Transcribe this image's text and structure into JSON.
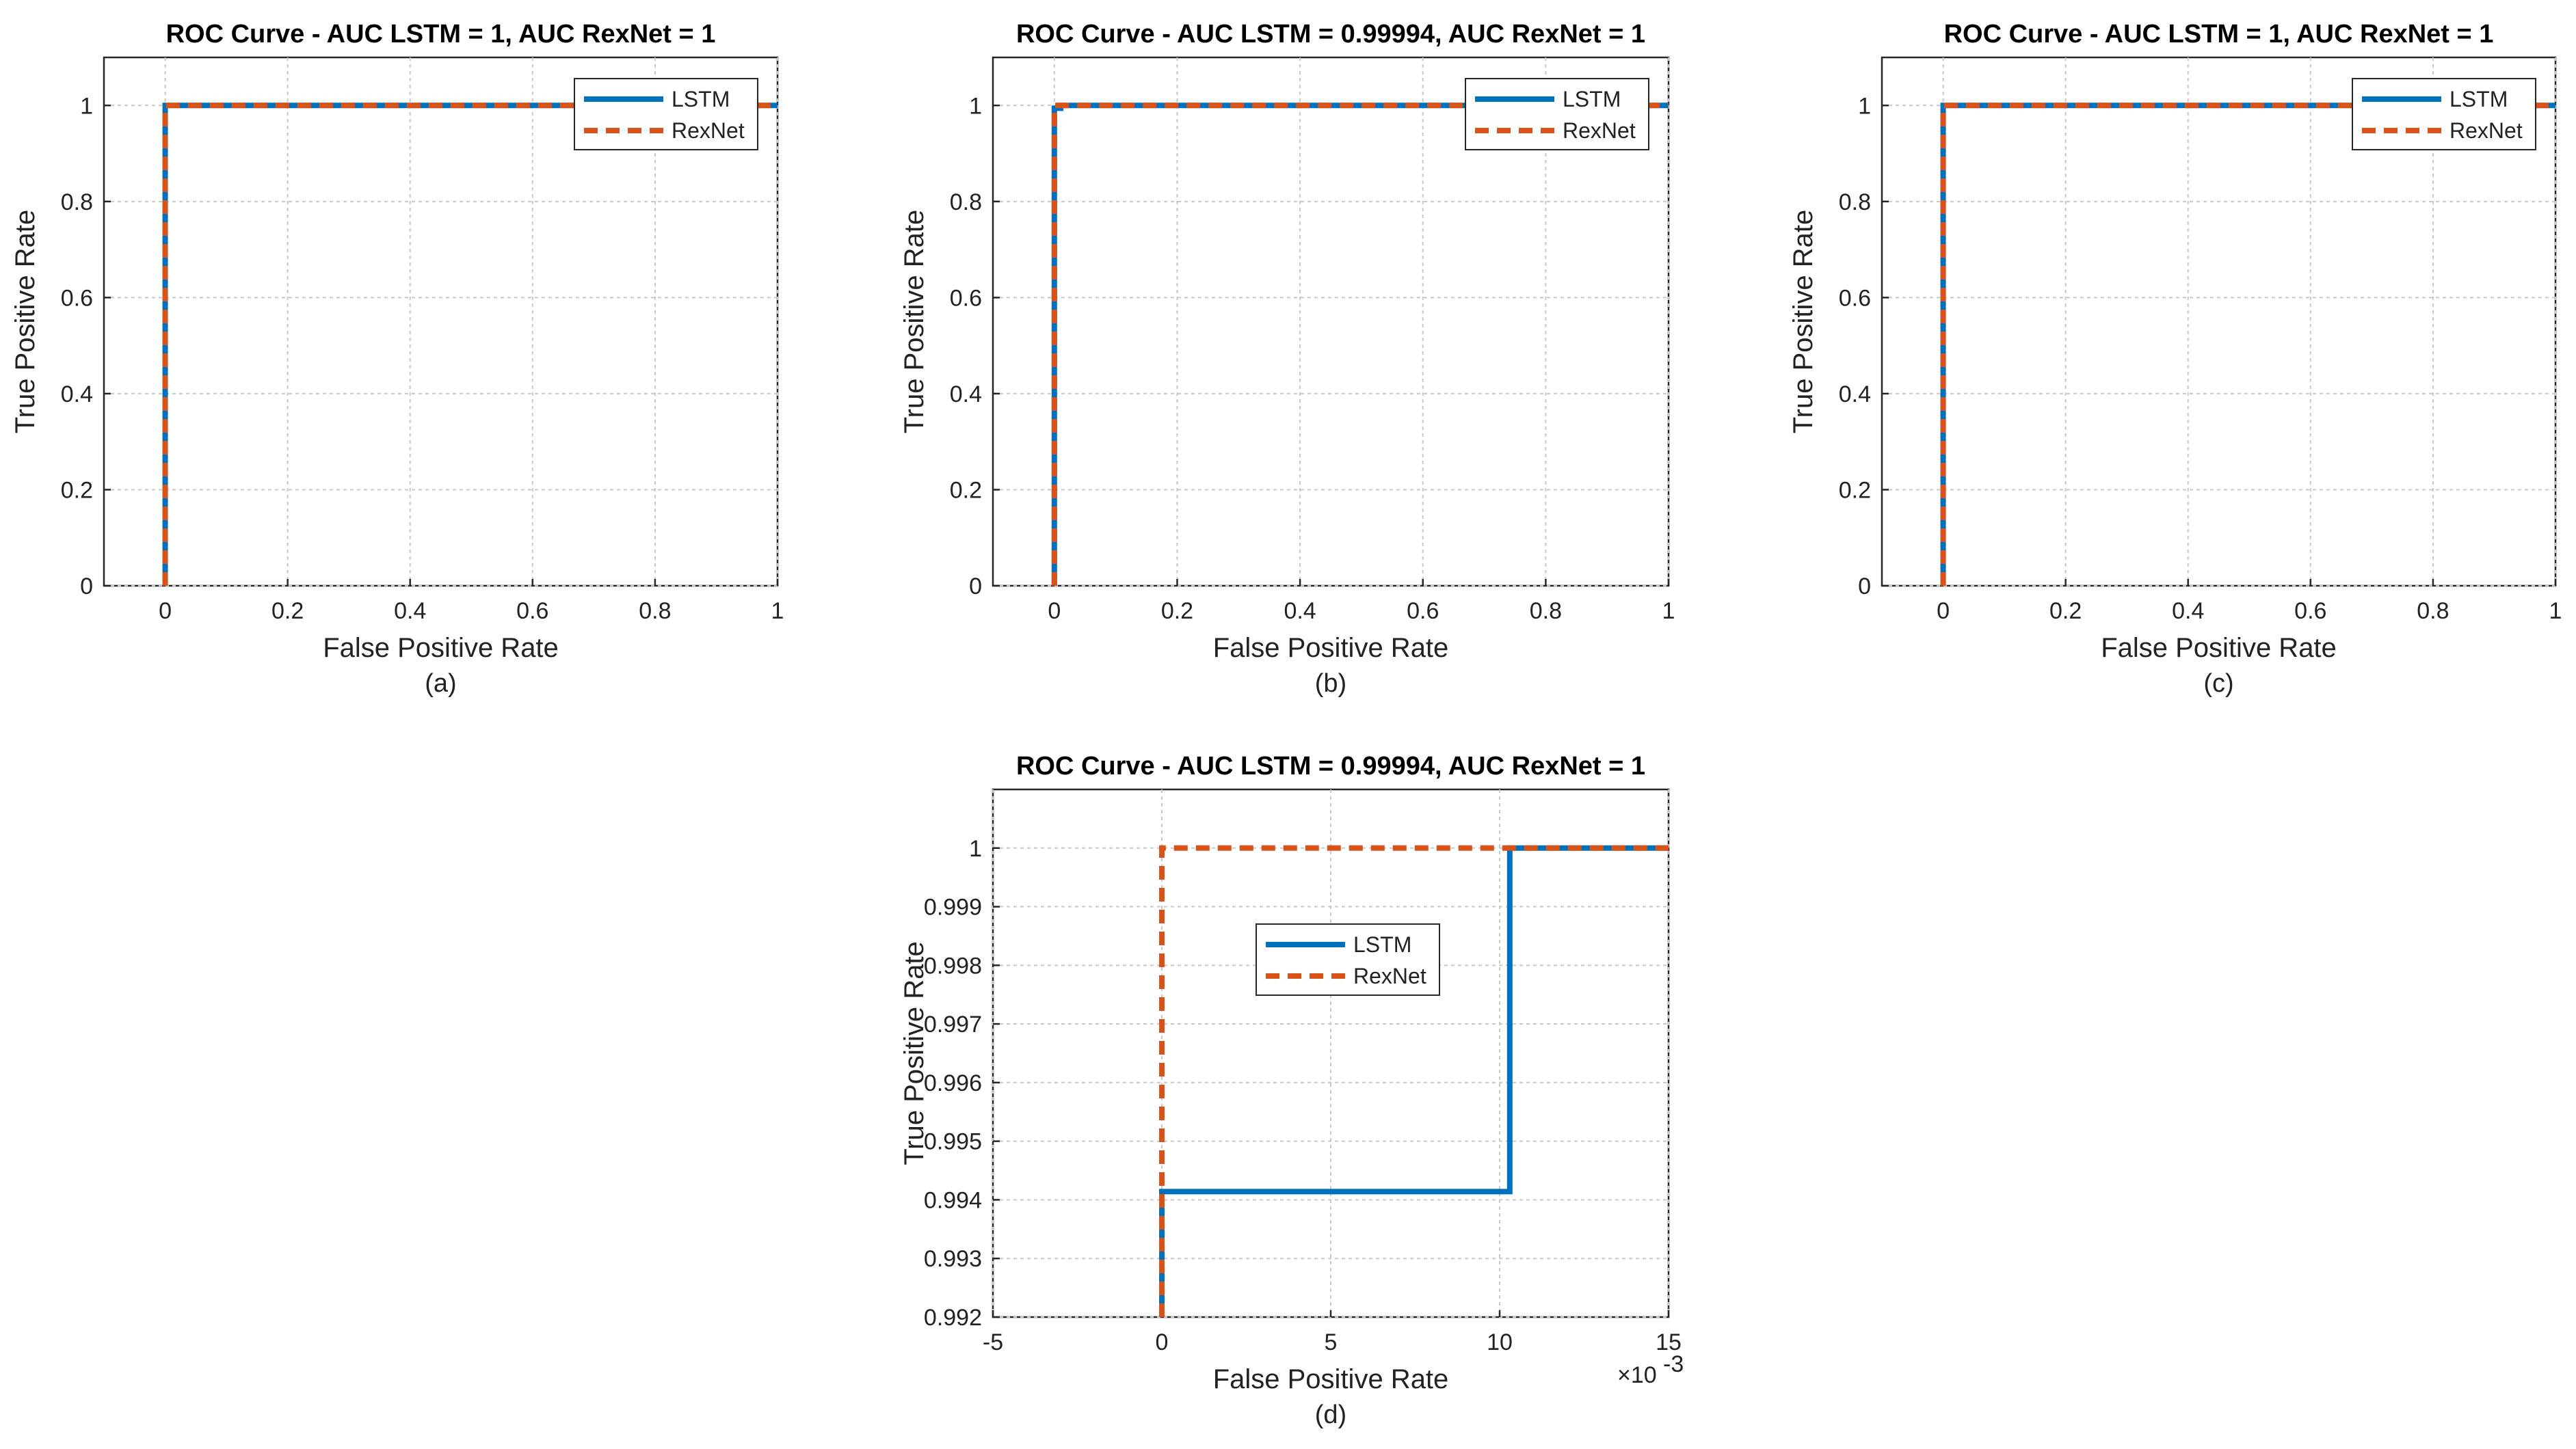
{
  "colors": {
    "lstm": "#0072BD",
    "rexnet": "#D95319"
  },
  "chart_data": [
    {
      "type": "line",
      "title": "ROC Curve - AUC LSTM = 1, AUC RexNet = 1",
      "xlabel": "False Positive Rate",
      "ylabel": "True Positive Rate",
      "caption": "(a)",
      "xlim": [
        -0.1,
        1
      ],
      "ylim": [
        0,
        1.1
      ],
      "xticks": [
        0,
        0.2,
        0.4,
        0.6,
        0.8,
        1
      ],
      "xtick_labels": [
        "0",
        "0.2",
        "0.4",
        "0.6",
        "0.8",
        "1"
      ],
      "yticks": [
        0,
        0.2,
        0.4,
        0.6,
        0.8,
        1
      ],
      "ytick_labels": [
        "0",
        "0.2",
        "0.4",
        "0.6",
        "0.8",
        "1"
      ],
      "grid": true,
      "legend": "top-right",
      "series": [
        {
          "name": "LSTM",
          "style": "solid",
          "x": [
            0,
            0,
            1
          ],
          "y": [
            0,
            1,
            1
          ]
        },
        {
          "name": "RexNet",
          "style": "dashed",
          "x": [
            0,
            0,
            1
          ],
          "y": [
            0,
            1,
            1
          ]
        }
      ]
    },
    {
      "type": "line",
      "title": "ROC Curve - AUC LSTM = 0.99994, AUC RexNet = 1",
      "xlabel": "False Positive Rate",
      "ylabel": "True Positive Rate",
      "caption": "(b)",
      "xlim": [
        -0.1,
        1
      ],
      "ylim": [
        0,
        1.1
      ],
      "xticks": [
        0,
        0.2,
        0.4,
        0.6,
        0.8,
        1
      ],
      "xtick_labels": [
        "0",
        "0.2",
        "0.4",
        "0.6",
        "0.8",
        "1"
      ],
      "yticks": [
        0,
        0.2,
        0.4,
        0.6,
        0.8,
        1
      ],
      "ytick_labels": [
        "0",
        "0.2",
        "0.4",
        "0.6",
        "0.8",
        "1"
      ],
      "grid": true,
      "legend": "top-right",
      "series": [
        {
          "name": "LSTM",
          "style": "solid",
          "x": [
            0,
            0,
            0.0103,
            0.0103,
            1
          ],
          "y": [
            0,
            0.99414,
            0.99414,
            1,
            1
          ]
        },
        {
          "name": "RexNet",
          "style": "dashed",
          "x": [
            0,
            0,
            1
          ],
          "y": [
            0,
            1,
            1
          ]
        }
      ]
    },
    {
      "type": "line",
      "title": "ROC Curve - AUC LSTM = 1, AUC RexNet = 1",
      "xlabel": "False Positive Rate",
      "ylabel": "True Positive Rate",
      "caption": "(c)",
      "xlim": [
        -0.1,
        1
      ],
      "ylim": [
        0,
        1.1
      ],
      "xticks": [
        0,
        0.2,
        0.4,
        0.6,
        0.8,
        1
      ],
      "xtick_labels": [
        "0",
        "0.2",
        "0.4",
        "0.6",
        "0.8",
        "1"
      ],
      "yticks": [
        0,
        0.2,
        0.4,
        0.6,
        0.8,
        1
      ],
      "ytick_labels": [
        "0",
        "0.2",
        "0.4",
        "0.6",
        "0.8",
        "1"
      ],
      "grid": true,
      "legend": "top-right",
      "series": [
        {
          "name": "LSTM",
          "style": "solid",
          "x": [
            0,
            0,
            1
          ],
          "y": [
            0,
            1,
            1
          ]
        },
        {
          "name": "RexNet",
          "style": "dashed",
          "x": [
            0,
            0,
            1
          ],
          "y": [
            0,
            1,
            1
          ]
        }
      ]
    },
    {
      "type": "line",
      "title": "ROC Curve - AUC LSTM = 0.99994, AUC RexNet = 1",
      "xlabel": "False Positive Rate",
      "ylabel": "True Positive Rate",
      "caption": "(d)",
      "x_multiplier": "×10",
      "x_multiplier_exp": "-3",
      "xlim": [
        -0.005,
        0.015
      ],
      "ylim": [
        0.992,
        1.001
      ],
      "xticks": [
        -0.005,
        0,
        0.005,
        0.01,
        0.015
      ],
      "xtick_labels": [
        "-5",
        "0",
        "5",
        "10",
        "15"
      ],
      "yticks": [
        0.992,
        0.993,
        0.994,
        0.995,
        0.996,
        0.997,
        0.998,
        0.999,
        1
      ],
      "ytick_labels": [
        "0.992",
        "0.993",
        "0.994",
        "0.995",
        "0.996",
        "0.997",
        "0.998",
        "0.999",
        "1"
      ],
      "grid": true,
      "legend": "upper-middle",
      "series": [
        {
          "name": "LSTM",
          "style": "solid",
          "x": [
            0,
            0,
            0.0103,
            0.0103,
            0.015
          ],
          "y": [
            0.992,
            0.99414,
            0.99414,
            1,
            1
          ]
        },
        {
          "name": "RexNet",
          "style": "dashed",
          "x": [
            0,
            0,
            0.015
          ],
          "y": [
            0.992,
            1,
            1
          ]
        }
      ]
    }
  ]
}
